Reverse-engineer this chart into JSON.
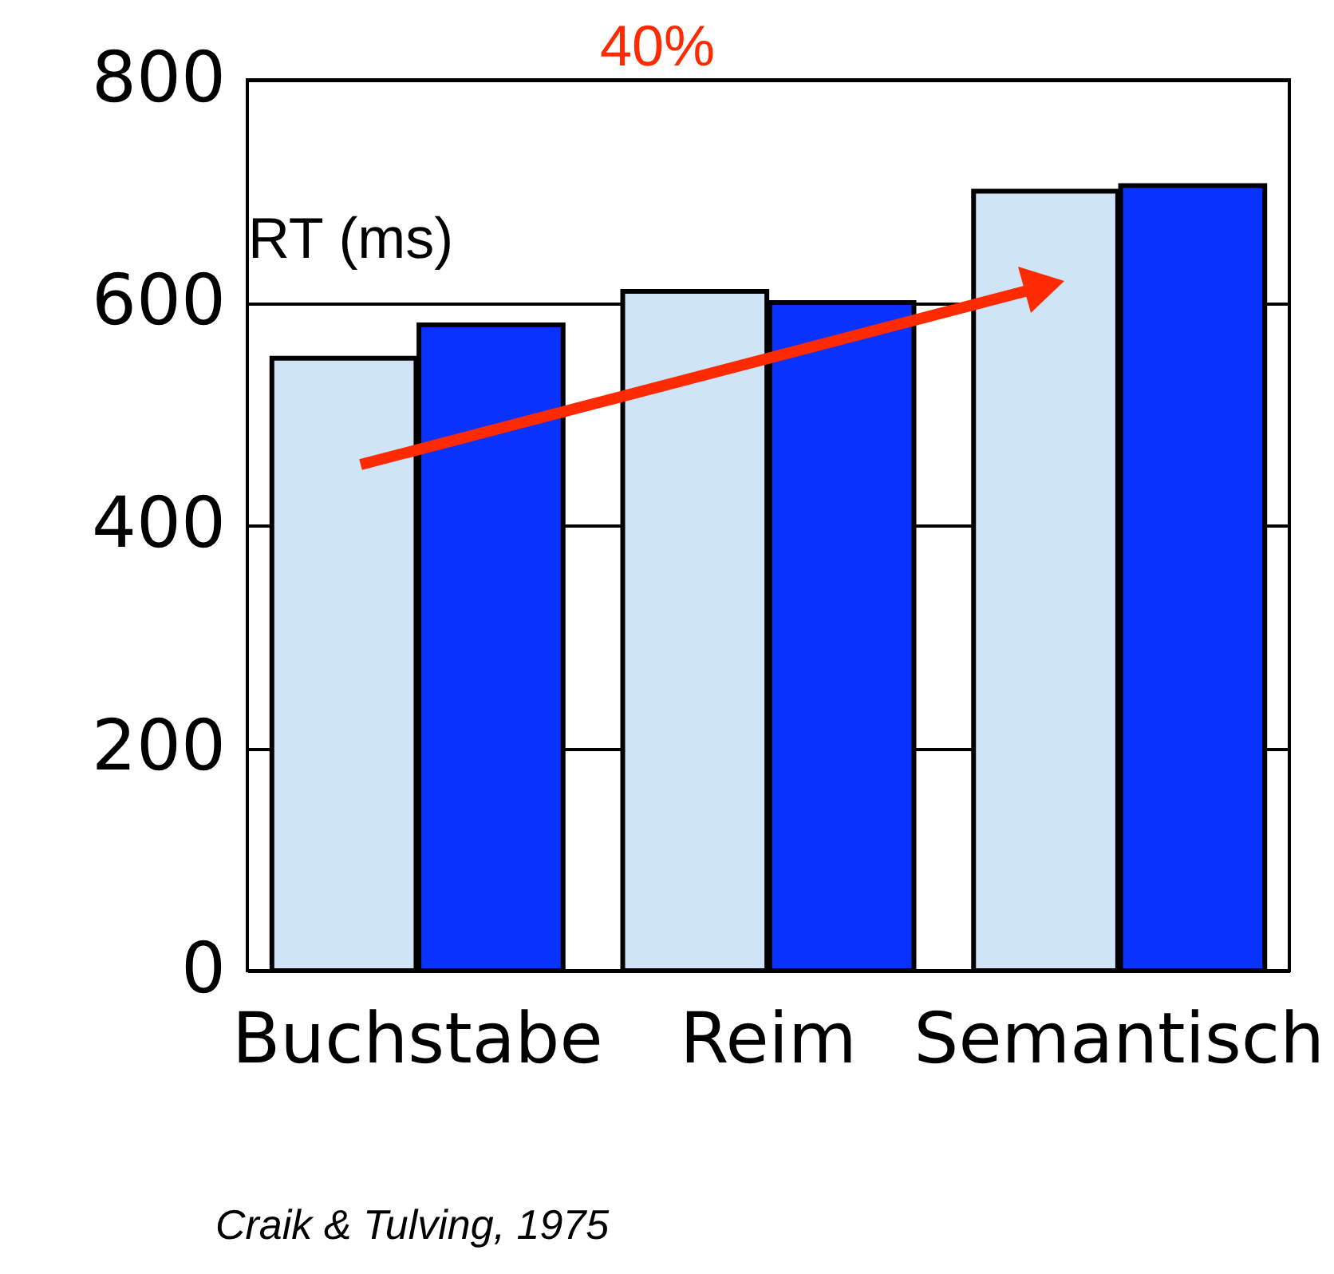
{
  "chart_data": {
    "type": "bar",
    "ylabel": "RT (ms)",
    "categories": [
      "Buchstabe",
      "Reim",
      "Semantisch"
    ],
    "series": [
      {
        "color": "#cfe4f7",
        "values": [
          550,
          610,
          700
        ]
      },
      {
        "color": "#0a32ff",
        "values": [
          580,
          600,
          705
        ]
      }
    ],
    "ylim": [
      0,
      800
    ],
    "yticks": [
      0,
      200,
      400,
      600,
      800
    ],
    "grid": "y",
    "legend": false,
    "annotations": [
      "40%",
      "Craik & Tulving, 1975"
    ]
  }
}
